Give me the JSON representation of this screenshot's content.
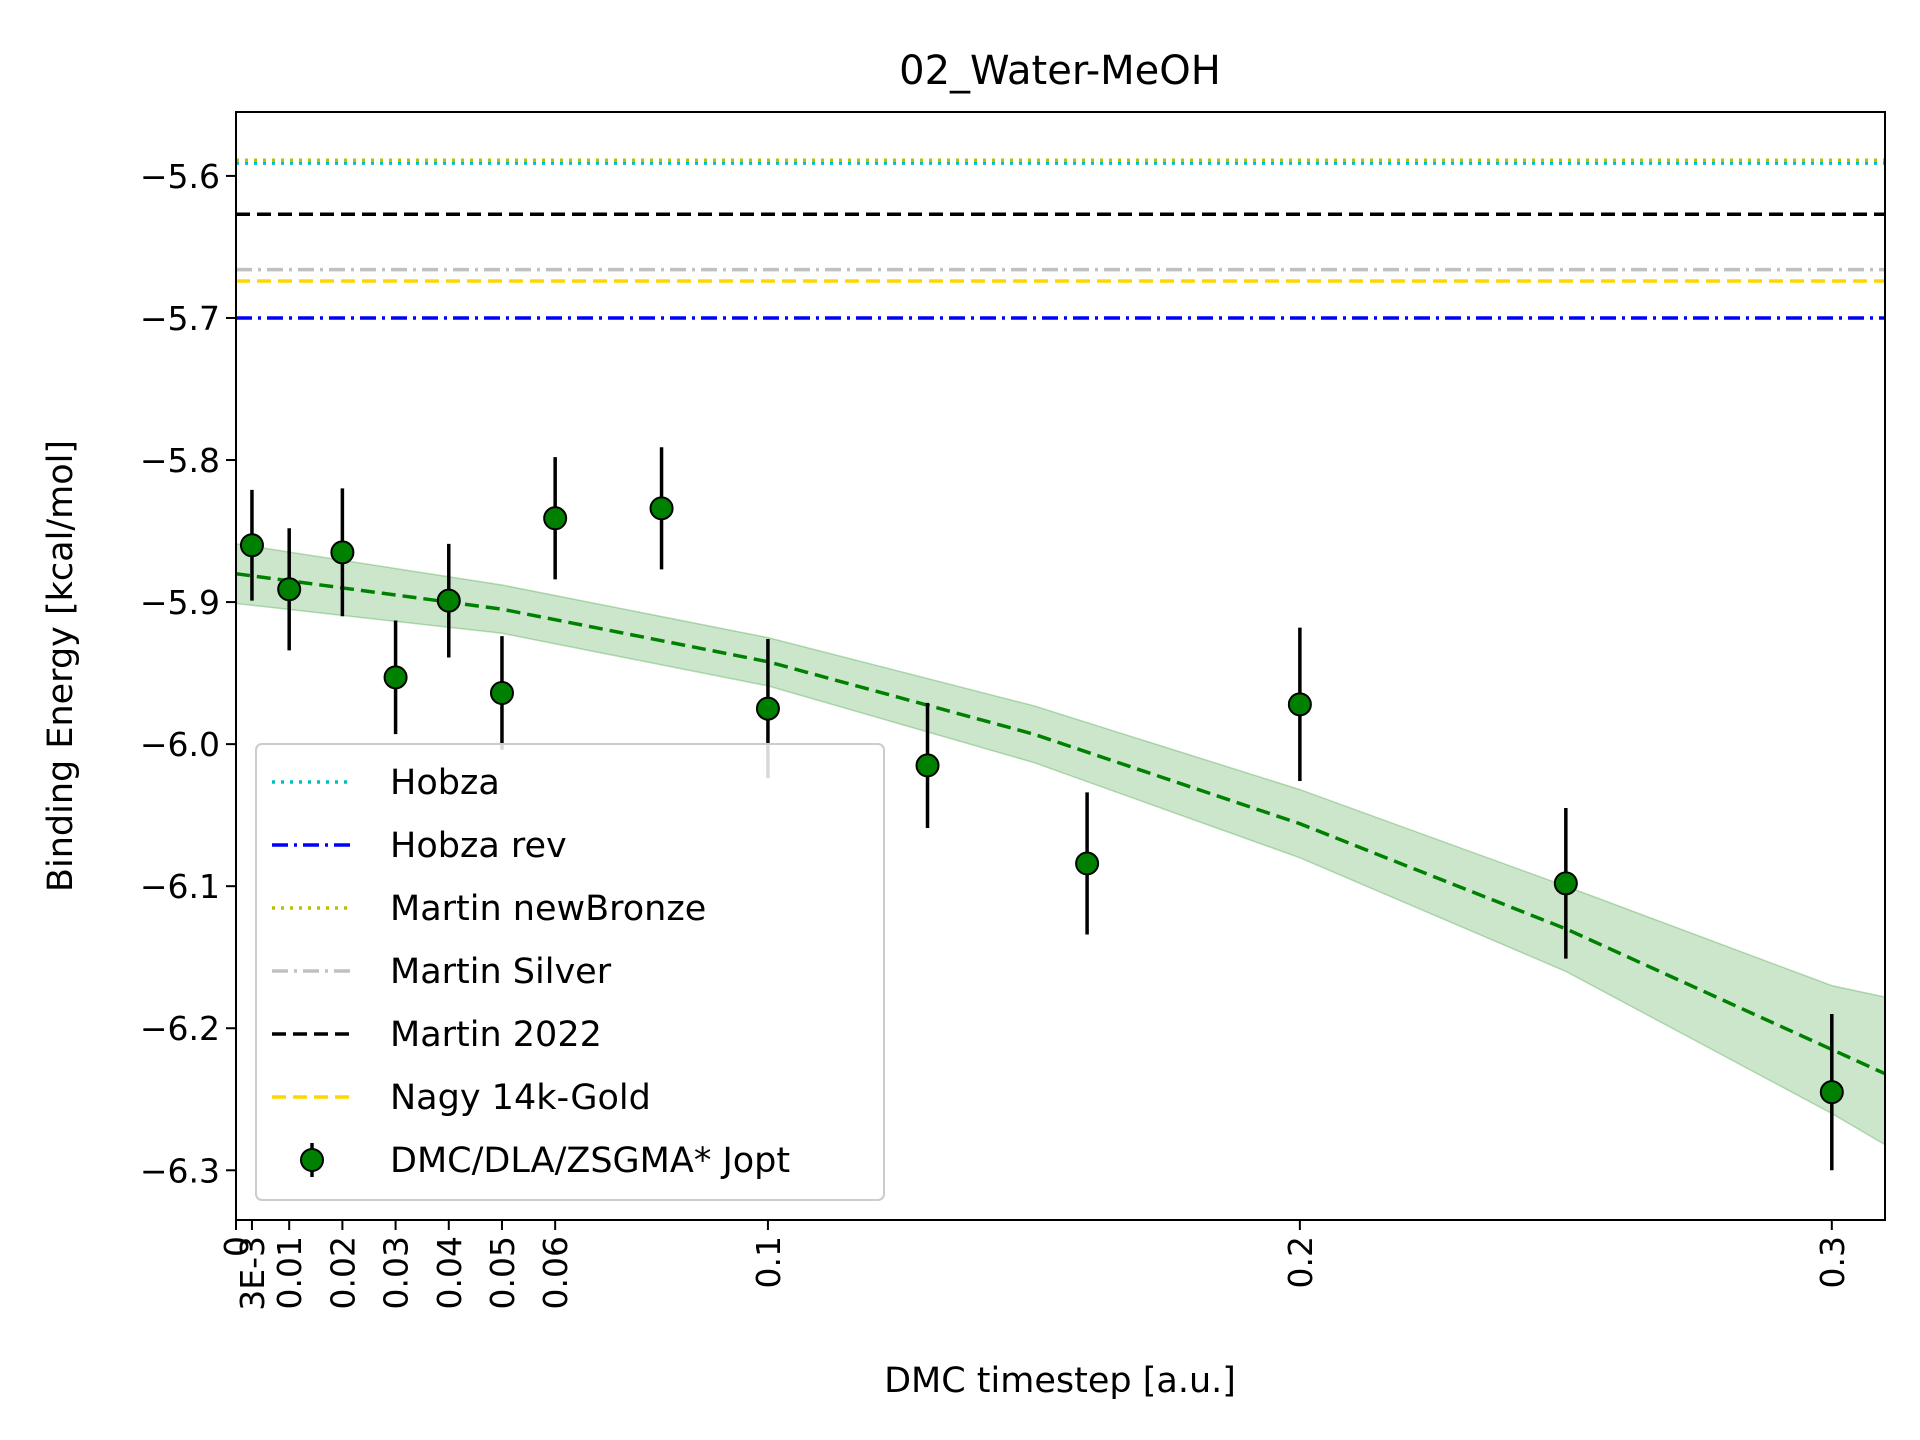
{
  "chart_data": {
    "type": "scatter",
    "title": "02_Water-MeOH",
    "xlabel": "DMC timestep [a.u.]",
    "ylabel": "Binding Energy [kcal/mol]",
    "xlim": [
      0,
      0.31
    ],
    "ylim": [
      -6.335,
      -5.555
    ],
    "x_ticks": [
      {
        "value": 0,
        "label": "0"
      },
      {
        "value": 0.003,
        "label": "3E-3"
      },
      {
        "value": 0.01,
        "label": "0.01"
      },
      {
        "value": 0.02,
        "label": "0.02"
      },
      {
        "value": 0.03,
        "label": "0.03"
      },
      {
        "value": 0.04,
        "label": "0.04"
      },
      {
        "value": 0.05,
        "label": "0.05"
      },
      {
        "value": 0.06,
        "label": "0.06"
      },
      {
        "value": 0.1,
        "label": "0.1"
      },
      {
        "value": 0.2,
        "label": "0.2"
      },
      {
        "value": 0.3,
        "label": "0.3"
      }
    ],
    "y_ticks": [
      {
        "value": -5.6,
        "label": "−5.6"
      },
      {
        "value": -5.7,
        "label": "−5.7"
      },
      {
        "value": -5.8,
        "label": "−5.8"
      },
      {
        "value": -5.9,
        "label": "−5.9"
      },
      {
        "value": -6.0,
        "label": "−6.0"
      },
      {
        "value": -6.1,
        "label": "−6.1"
      },
      {
        "value": -6.2,
        "label": "−6.2"
      },
      {
        "value": -6.3,
        "label": "−6.3"
      }
    ],
    "grid": false,
    "legend_position": "lower-left",
    "reference_lines": [
      {
        "name": "Hobza",
        "y": -5.591,
        "color": "#00bfbf",
        "style": "dotted"
      },
      {
        "name": "Hobza rev",
        "y": -5.7,
        "color": "#0000ff",
        "style": "dashdot"
      },
      {
        "name": "Martin newBronze",
        "y": -5.589,
        "color": "#bfbf00",
        "style": "dotted"
      },
      {
        "name": "Martin Silver",
        "y": -5.666,
        "color": "#c0c0c0",
        "style": "dashdot"
      },
      {
        "name": "Martin 2022",
        "y": -5.627,
        "color": "#000000",
        "style": "dashed"
      },
      {
        "name": "Nagy 14k-Gold",
        "y": -5.674,
        "color": "#ffd700",
        "style": "dashed"
      }
    ],
    "series": [
      {
        "name": "DMC/DLA/ZSGMA* Jopt",
        "color": "#008000",
        "points": [
          {
            "x": 0.003,
            "y": -5.86,
            "err": 0.039
          },
          {
            "x": 0.01,
            "y": -5.891,
            "err": 0.043
          },
          {
            "x": 0.02,
            "y": -5.865,
            "err": 0.045
          },
          {
            "x": 0.03,
            "y": -5.953,
            "err": 0.04
          },
          {
            "x": 0.04,
            "y": -5.899,
            "err": 0.04
          },
          {
            "x": 0.05,
            "y": -5.964,
            "err": 0.04
          },
          {
            "x": 0.06,
            "y": -5.841,
            "err": 0.043
          },
          {
            "x": 0.08,
            "y": -5.834,
            "err": 0.043
          },
          {
            "x": 0.1,
            "y": -5.975,
            "err": 0.049
          },
          {
            "x": 0.13,
            "y": -6.015,
            "err": 0.044
          },
          {
            "x": 0.16,
            "y": -6.084,
            "err": 0.05
          },
          {
            "x": 0.2,
            "y": -5.972,
            "err": 0.054
          },
          {
            "x": 0.25,
            "y": -6.098,
            "err": 0.053
          },
          {
            "x": 0.3,
            "y": -6.245,
            "err": 0.055
          }
        ]
      }
    ],
    "fit": {
      "x": [
        0,
        0.05,
        0.1,
        0.15,
        0.2,
        0.25,
        0.3,
        0.31
      ],
      "y": [
        -5.88,
        -5.905,
        -5.942,
        -5.993,
        -6.056,
        -6.13,
        -6.215,
        -6.232
      ],
      "upper": [
        -5.859,
        -5.888,
        -5.925,
        -5.973,
        -6.032,
        -6.1,
        -6.17,
        -6.178
      ],
      "lower": [
        -5.901,
        -5.922,
        -5.959,
        -6.013,
        -6.08,
        -6.16,
        -6.26,
        -6.282
      ],
      "color": "#008000",
      "band_color": "#008000"
    }
  }
}
